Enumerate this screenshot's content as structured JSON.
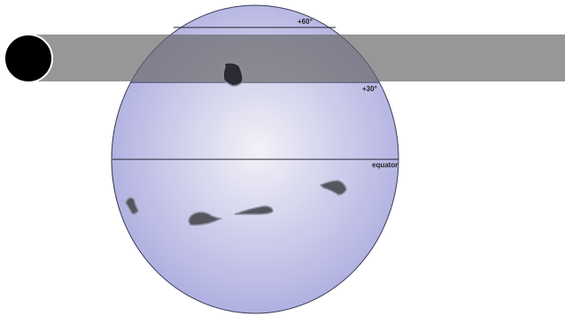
{
  "diagram": {
    "labels": {
      "lat60": "+60°",
      "lat30": "+30°",
      "equator": "equator"
    },
    "colors": {
      "globe_center": "#f2f2f7",
      "globe_edge": "#aaaadf",
      "globe_outline": "#3a3a55",
      "band_fill": "#666666",
      "band_opacity": "0.68",
      "planet_fill": "#000000",
      "planet_outline": "#ffffff",
      "spot_fill": "#555560",
      "spot_outline": "#8d8d9d",
      "occulted_spot_fill": "#2b2b34",
      "line_color": "#222233"
    }
  }
}
